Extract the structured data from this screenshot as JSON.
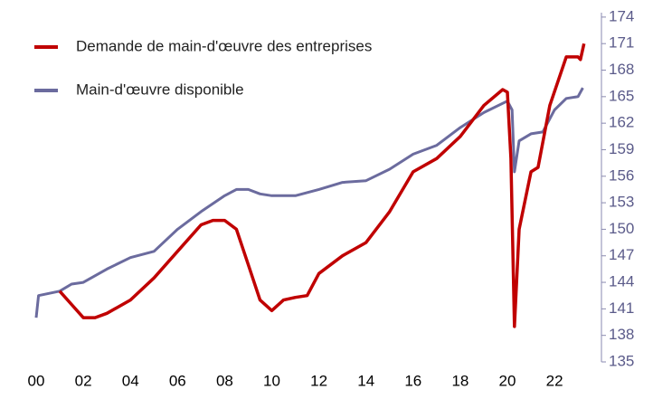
{
  "chart_data": {
    "type": "line",
    "xlim": [
      2000,
      2024
    ],
    "ylim": [
      135,
      174.5
    ],
    "xticks": [
      {
        "value": 2000,
        "label": "00"
      },
      {
        "value": 2002,
        "label": "02"
      },
      {
        "value": 2004,
        "label": "04"
      },
      {
        "value": 2006,
        "label": "06"
      },
      {
        "value": 2008,
        "label": "08"
      },
      {
        "value": 2010,
        "label": "10"
      },
      {
        "value": 2012,
        "label": "12"
      },
      {
        "value": 2014,
        "label": "14"
      },
      {
        "value": 2016,
        "label": "16"
      },
      {
        "value": 2018,
        "label": "18"
      },
      {
        "value": 2020,
        "label": "20"
      },
      {
        "value": 2022,
        "label": "22"
      }
    ],
    "yticks": [
      135,
      138,
      141,
      144,
      147,
      150,
      153,
      156,
      159,
      162,
      165,
      168,
      171,
      174
    ],
    "legend": "top-left",
    "series": [
      {
        "name": "Demande de main-d'œuvre des entreprises",
        "color": "#c00000",
        "x": [
          2001,
          2001.5,
          2002,
          2002.5,
          2003,
          2004,
          2005,
          2006,
          2007,
          2007.5,
          2008,
          2008.5,
          2009,
          2009.5,
          2010,
          2010.5,
          2011,
          2011.5,
          2012,
          2013,
          2014,
          2015,
          2016,
          2017,
          2018,
          2019,
          2019.8,
          2020,
          2020.15,
          2020.3,
          2020.5,
          2021,
          2021.3,
          2021.8,
          2022.5,
          2023,
          2023.1,
          2023.25
        ],
        "values": [
          143,
          141.5,
          140,
          140,
          140.5,
          142,
          144.5,
          147.5,
          150.5,
          151,
          151,
          150,
          146,
          142,
          140.8,
          142,
          142.3,
          142.5,
          145,
          147,
          148.5,
          152,
          156.5,
          158,
          160.5,
          164,
          165.8,
          165.5,
          158,
          139,
          150,
          156.5,
          157,
          164,
          169.5,
          169.5,
          169.2,
          171
        ]
      },
      {
        "name": "Main-d'œuvre disponible",
        "color": "#6b6b9e",
        "x": [
          2000,
          2000.1,
          2001,
          2001.5,
          2002,
          2003,
          2004,
          2005,
          2006,
          2007,
          2008,
          2008.5,
          2009,
          2009.5,
          2010,
          2011,
          2012,
          2013,
          2014,
          2015,
          2016,
          2017,
          2018,
          2019,
          2020,
          2020.2,
          2020.3,
          2020.5,
          2021,
          2021.5,
          2022,
          2022.5,
          2023,
          2023.2
        ],
        "values": [
          140,
          142.5,
          143,
          143.8,
          144,
          145.5,
          146.8,
          147.5,
          150,
          152,
          153.8,
          154.5,
          154.5,
          154,
          153.8,
          153.8,
          154.5,
          155.3,
          155.5,
          156.8,
          158.5,
          159.5,
          161.5,
          163.2,
          164.5,
          163.5,
          156.5,
          160,
          160.8,
          161,
          163.5,
          164.8,
          165,
          166
        ]
      }
    ]
  }
}
